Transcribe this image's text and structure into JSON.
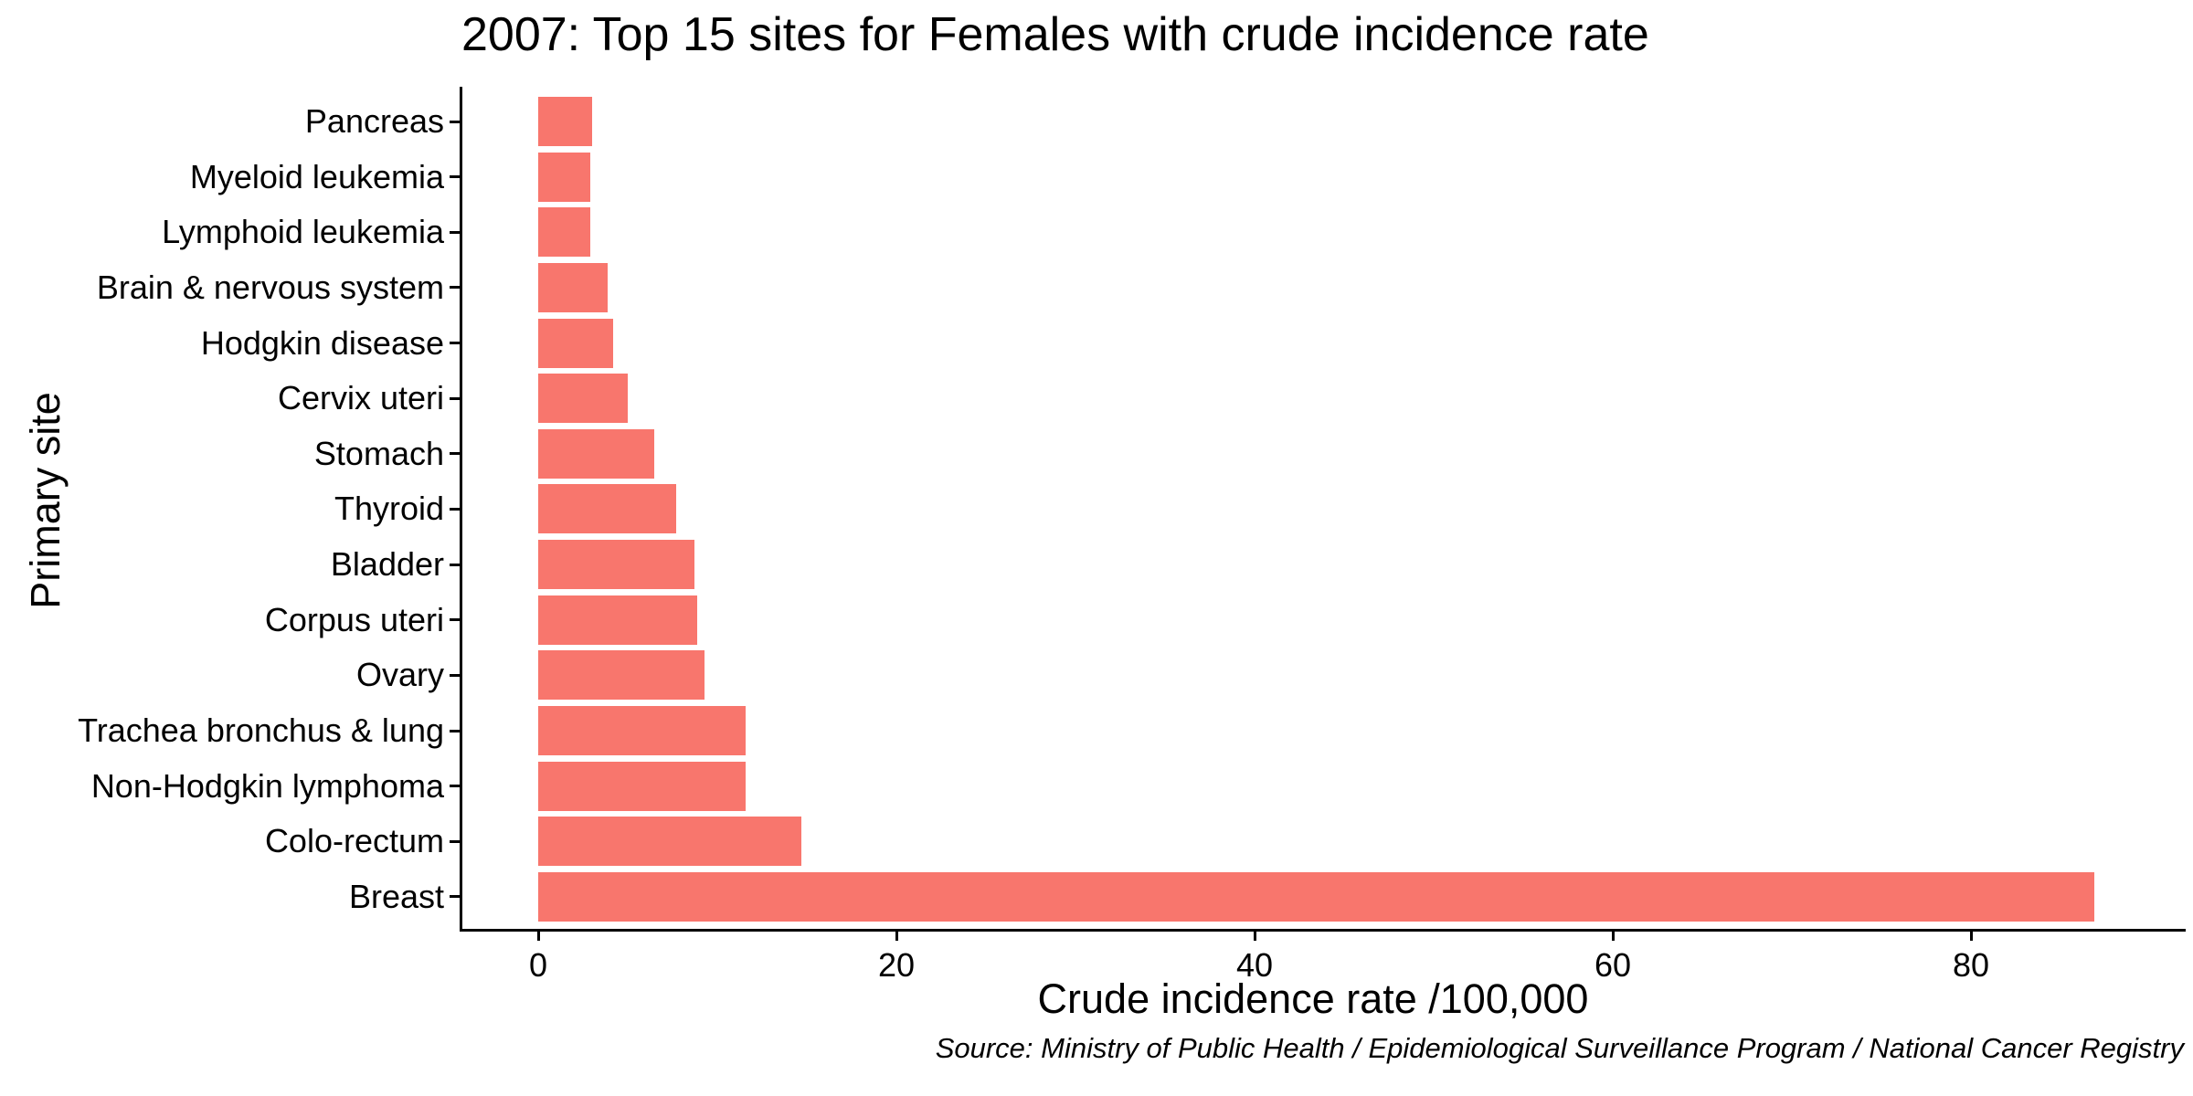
{
  "chart_data": {
    "type": "bar",
    "orientation": "horizontal",
    "title": "2007: Top 15 sites for Females with crude incidence rate",
    "xlabel": "Crude incidence rate /100,000",
    "ylabel": "Primary site",
    "caption": "Source: Ministry of Public Health / Epidemiological Surveillance Program / National Cancer Registry",
    "categories": [
      "Pancreas",
      "Myeloid leukemia",
      "Lymphoid leukemia",
      "Brain & nervous system",
      "Hodgkin disease",
      "Cervix uteri",
      "Stomach",
      "Thyroid",
      "Bladder",
      "Corpus uteri",
      "Ovary",
      "Trachea bronchus & lung",
      "Non-Hodgkin lymphoma",
      "Colo-rectum",
      "Breast"
    ],
    "values": [
      3.0,
      2.9,
      2.9,
      3.9,
      4.2,
      5.0,
      6.5,
      7.7,
      8.7,
      8.9,
      9.3,
      11.6,
      11.6,
      14.7,
      86.9
    ],
    "x_ticks": [
      0,
      20,
      40,
      60,
      80
    ],
    "xlim": [
      -4.3,
      91.3
    ],
    "grid": false,
    "legend_position": "none",
    "bar_color": "#F8766D",
    "background_color": "#FFFFFF",
    "text_color": "#000000"
  }
}
